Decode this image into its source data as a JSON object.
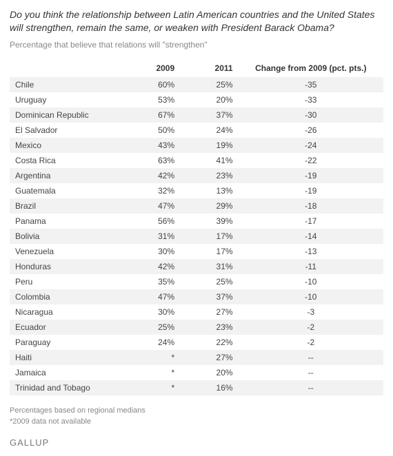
{
  "title": "Do you think the relationship between Latin American countries and the United States will strengthen, remain the same, or weaken with President Barack Obama?",
  "subtitle": "Percentage that believe that relations will \"strengthen\"",
  "columns": {
    "country": "",
    "y2009": "2009",
    "y2011": "2011",
    "change": "Change from 2009 (pct. pts.)"
  },
  "rows": [
    {
      "country": "Chile",
      "y2009": "60%",
      "y2011": "25%",
      "change": "-35"
    },
    {
      "country": "Uruguay",
      "y2009": "53%",
      "y2011": "20%",
      "change": "-33"
    },
    {
      "country": "Dominican Republic",
      "y2009": "67%",
      "y2011": "37%",
      "change": "-30"
    },
    {
      "country": "El Salvador",
      "y2009": "50%",
      "y2011": "24%",
      "change": "-26"
    },
    {
      "country": "Mexico",
      "y2009": "43%",
      "y2011": "19%",
      "change": "-24"
    },
    {
      "country": "Costa Rica",
      "y2009": "63%",
      "y2011": "41%",
      "change": "-22"
    },
    {
      "country": "Argentina",
      "y2009": "42%",
      "y2011": "23%",
      "change": "-19"
    },
    {
      "country": "Guatemala",
      "y2009": "32%",
      "y2011": "13%",
      "change": "-19"
    },
    {
      "country": "Brazil",
      "y2009": "47%",
      "y2011": "29%",
      "change": "-18"
    },
    {
      "country": "Panama",
      "y2009": "56%",
      "y2011": "39%",
      "change": "-17"
    },
    {
      "country": "Bolivia",
      "y2009": "31%",
      "y2011": "17%",
      "change": "-14"
    },
    {
      "country": "Venezuela",
      "y2009": "30%",
      "y2011": "17%",
      "change": "-13"
    },
    {
      "country": "Honduras",
      "y2009": "42%",
      "y2011": "31%",
      "change": "-11"
    },
    {
      "country": "Peru",
      "y2009": "35%",
      "y2011": "25%",
      "change": "-10"
    },
    {
      "country": "Colombia",
      "y2009": "47%",
      "y2011": "37%",
      "change": "-10"
    },
    {
      "country": "Nicaragua",
      "y2009": "30%",
      "y2011": "27%",
      "change": "-3"
    },
    {
      "country": "Ecuador",
      "y2009": "25%",
      "y2011": "23%",
      "change": "-2"
    },
    {
      "country": "Paraguay",
      "y2009": "24%",
      "y2011": "22%",
      "change": "-2"
    },
    {
      "country": "Haiti",
      "y2009": "*",
      "y2011": "27%",
      "change": "--"
    },
    {
      "country": "Jamaica",
      "y2009": "*",
      "y2011": "20%",
      "change": "--"
    },
    {
      "country": "Trinidad and Tobago",
      "y2009": "*",
      "y2011": "16%",
      "change": "--"
    }
  ],
  "footnote1": "Percentages based on regional medians",
  "footnote2": "*2009 data not available",
  "brand": "GALLUP"
}
